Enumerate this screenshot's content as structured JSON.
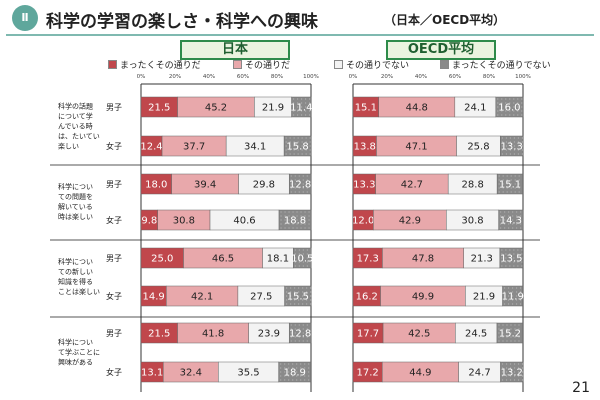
{
  "title": {
    "badge": "Ⅱ",
    "main": "科学の学習の楽しさ・科学への興味",
    "sub": "（日本／OECD平均）"
  },
  "page_number": "21",
  "colors": {
    "strongly_agree": "#c0474c",
    "agree": "#e8a8ab",
    "disagree": "#f3f3f3",
    "strongly_disagree": "#8a8a8a",
    "panel_border": "#2e8b4a",
    "panel_fill": "#eaf4df",
    "title_accent": "#5fa79c"
  },
  "chart_data": {
    "type": "bar",
    "stacked": true,
    "orientation": "horizontal",
    "title": "科学の学習の楽しさ・科学への興味",
    "subtitle": "（日本／OECD平均）",
    "legend": [
      "まったくその通りだ",
      "その通りだ",
      "その通りでない",
      "まったくその通りでない"
    ],
    "legend_position": "top",
    "xlim": [
      0,
      100
    ],
    "xticks": [
      "0%",
      "20%",
      "40%",
      "60%",
      "80%",
      "100%"
    ],
    "grid": false,
    "panels": [
      {
        "name": "日本",
        "questions": [
          {
            "label": [
              "科学の話題",
              "について学",
              "んでいる時",
              "は、たいてい",
              "楽しい"
            ],
            "groups": [
              {
                "label": "男子",
                "values": [
                  21.5,
                  45.2,
                  21.9,
                  11.4
                ]
              },
              {
                "label": "女子",
                "values": [
                  12.4,
                  37.7,
                  34.1,
                  15.8
                ]
              }
            ]
          },
          {
            "label": [
              "科学につい",
              "ての問題を",
              "解いている",
              "時は楽しい"
            ],
            "groups": [
              {
                "label": "男子",
                "values": [
                  18.0,
                  39.4,
                  29.8,
                  12.8
                ]
              },
              {
                "label": "女子",
                "values": [
                  9.8,
                  30.8,
                  40.6,
                  18.8
                ]
              }
            ]
          },
          {
            "label": [
              "科学につい",
              "ての新しい",
              "知識を得る",
              "ことは楽しい"
            ],
            "groups": [
              {
                "label": "男子",
                "values": [
                  25.0,
                  46.5,
                  18.1,
                  10.5
                ]
              },
              {
                "label": "女子",
                "values": [
                  14.9,
                  42.1,
                  27.5,
                  15.5
                ]
              }
            ]
          },
          {
            "label": [
              "科学につい",
              "て学ぶことに",
              "興味がある"
            ],
            "groups": [
              {
                "label": "男子",
                "values": [
                  21.5,
                  41.8,
                  23.9,
                  12.8
                ]
              },
              {
                "label": "女子",
                "values": [
                  13.1,
                  32.4,
                  35.5,
                  18.9
                ]
              }
            ]
          }
        ]
      },
      {
        "name": "OECD平均",
        "questions": [
          {
            "groups": [
              {
                "label": "男子",
                "values": [
                  15.1,
                  44.8,
                  24.1,
                  16.0
                ]
              },
              {
                "label": "女子",
                "values": [
                  13.8,
                  47.1,
                  25.8,
                  13.3
                ]
              }
            ]
          },
          {
            "groups": [
              {
                "label": "男子",
                "values": [
                  13.3,
                  42.7,
                  28.8,
                  15.1
                ]
              },
              {
                "label": "女子",
                "values": [
                  12.0,
                  42.9,
                  30.8,
                  14.3
                ]
              }
            ]
          },
          {
            "groups": [
              {
                "label": "男子",
                "values": [
                  17.3,
                  47.8,
                  21.3,
                  13.5
                ]
              },
              {
                "label": "女子",
                "values": [
                  16.2,
                  49.9,
                  21.9,
                  11.9
                ]
              }
            ]
          },
          {
            "groups": [
              {
                "label": "男子",
                "values": [
                  17.7,
                  42.5,
                  24.5,
                  15.2
                ]
              },
              {
                "label": "女子",
                "values": [
                  17.2,
                  44.9,
                  24.7,
                  13.2
                ]
              }
            ]
          }
        ]
      }
    ]
  }
}
